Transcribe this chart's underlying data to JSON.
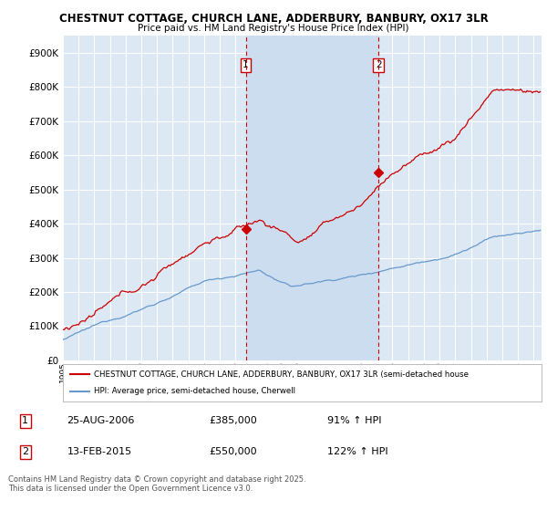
{
  "title_line1": "CHESTNUT COTTAGE, CHURCH LANE, ADDERBURY, BANBURY, OX17 3LR",
  "title_line2": "Price paid vs. HM Land Registry's House Price Index (HPI)",
  "background_color": "#dce9f5",
  "outer_bg_color": "#ffffff",
  "red_line_color": "#cc0000",
  "blue_line_color": "#6699cc",
  "shade_color": "#ccddf0",
  "marker1_x": 2006.65,
  "marker1_y": 385000,
  "marker1_label": "1",
  "marker2_x": 2015.12,
  "marker2_y": 550000,
  "marker2_label": "2",
  "legend_entry1": "CHESTNUT COTTAGE, CHURCH LANE, ADDERBURY, BANBURY, OX17 3LR (semi-detached house",
  "legend_entry2": "HPI: Average price, semi-detached house, Cherwell",
  "table_row1": [
    "1",
    "25-AUG-2006",
    "£385,000",
    "91% ↑ HPI"
  ],
  "table_row2": [
    "2",
    "13-FEB-2015",
    "£550,000",
    "122% ↑ HPI"
  ],
  "footnote": "Contains HM Land Registry data © Crown copyright and database right 2025.\nThis data is licensed under the Open Government Licence v3.0.",
  "ylim": [
    0,
    950000
  ],
  "xlim_start": 1995.0,
  "xlim_end": 2025.5,
  "yticks": [
    0,
    100000,
    200000,
    300000,
    400000,
    500000,
    600000,
    700000,
    800000,
    900000
  ]
}
